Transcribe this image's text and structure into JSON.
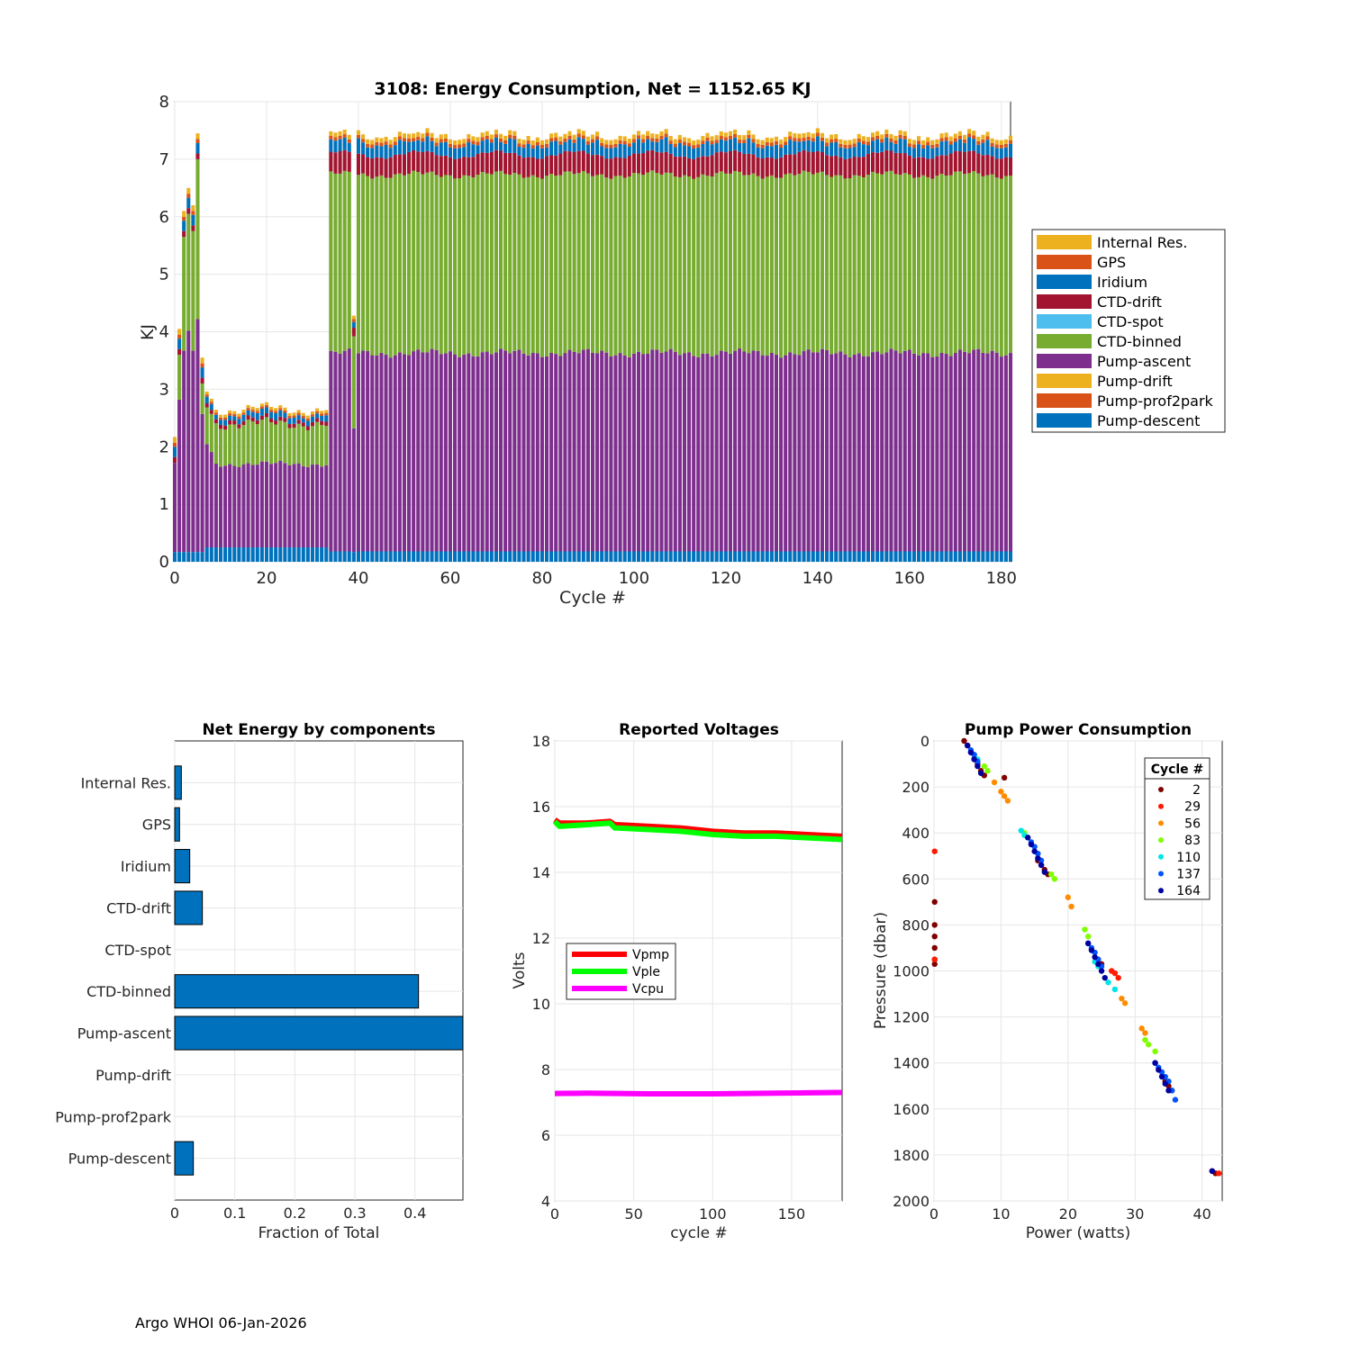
{
  "footer": "Argo WHOI 06-Jan-2026",
  "colors": {
    "internal": "#EDB120",
    "gps": "#D95319",
    "iridium": "#0072BD",
    "ctd_drift": "#A2142F",
    "ctd_spot": "#4DBEEE",
    "ctd_binned": "#77AC30",
    "pump_ascent": "#7E2F8E",
    "pump_drift": "#EDB120",
    "pump_prof2park": "#D95319",
    "pump_descent": "#0072BD",
    "vpmp": "#ff0000",
    "vple": "#00ff00",
    "vcpu": "#ff00ff"
  },
  "chart_data": [
    {
      "id": "energy",
      "type": "bar",
      "stacked": true,
      "title": "3108: Energy Consumption,  Net = 1152.65 KJ",
      "xlabel": "Cycle #",
      "ylabel": "KJ",
      "xlim": [
        0,
        182
      ],
      "ylim": [
        0,
        8
      ],
      "xticks": [
        0,
        20,
        40,
        60,
        80,
        100,
        120,
        140,
        160,
        180
      ],
      "yticks": [
        0,
        1,
        2,
        3,
        4,
        5,
        6,
        7,
        8
      ],
      "grid": true,
      "legend_position": "right",
      "legend": [
        "Internal Res.",
        "GPS",
        "Iridium",
        "CTD-drift",
        "CTD-spot",
        "CTD-binned",
        "Pump-ascent",
        "Pump-drift",
        "Pump-prof2park",
        "Pump-descent"
      ],
      "cycles": "0-182",
      "segment_values": {
        "early_cycles_0_6": {
          "totals": [
            1.9,
            4.05,
            6.1,
            6.5,
            6.2,
            7.45,
            3.55
          ],
          "pump_ascent": [
            1.55,
            2.65,
            3.5,
            3.85,
            3.5,
            4.05,
            2.4
          ]
        },
        "cycles_7_33": {
          "total_approx": 2.6,
          "pump_descent": 0.25,
          "pump_ascent": 1.45,
          "ctd_binned": 0.7,
          "ctd_drift": 0.07,
          "iridium": 0.1,
          "gps": 0.04,
          "internal": 0.05
        },
        "cycles_34_182": {
          "total_approx": 7.35,
          "pump_descent": 0.18,
          "pump_ascent": 3.45,
          "ctd_binned": 3.1,
          "ctd_drift": 0.35,
          "iridium": 0.15,
          "gps": 0.06,
          "internal": 0.08
        },
        "cycle_39": {
          "total": 4.3,
          "pump_ascent": 2.15
        }
      }
    },
    {
      "id": "components",
      "type": "bar",
      "orientation": "horizontal",
      "title": "Net Energy by components",
      "xlabel": "Fraction of Total",
      "xlim": [
        0,
        0.48
      ],
      "xticks": [
        0,
        0.1,
        0.2,
        0.3,
        0.4
      ],
      "categories": [
        "Internal Res.",
        "GPS",
        "Iridium",
        "CTD-drift",
        "CTD-spot",
        "CTD-binned",
        "Pump-ascent",
        "Pump-drift",
        "Pump-prof2park",
        "Pump-descent"
      ],
      "values": [
        0.011,
        0.008,
        0.025,
        0.046,
        0.0,
        0.406,
        0.48,
        0.0,
        0.0,
        0.031
      ],
      "grid": true
    },
    {
      "id": "voltages",
      "type": "line",
      "title": "Reported Voltages",
      "xlabel": "cycle #",
      "ylabel": "Volts",
      "xlim": [
        0,
        182
      ],
      "ylim": [
        4,
        18
      ],
      "xticks": [
        0,
        50,
        100,
        150
      ],
      "yticks": [
        4,
        6,
        8,
        10,
        12,
        14,
        16,
        18
      ],
      "grid": true,
      "legend_position": "center-left",
      "series": [
        {
          "name": "Vpmp",
          "x": [
            0,
            3,
            20,
            35,
            38,
            40,
            60,
            80,
            100,
            120,
            140,
            160,
            182
          ],
          "values": [
            15.6,
            15.5,
            15.5,
            15.55,
            15.45,
            15.45,
            15.4,
            15.35,
            15.25,
            15.2,
            15.2,
            15.15,
            15.1
          ]
        },
        {
          "name": "Vple",
          "x": [
            0,
            3,
            20,
            35,
            38,
            40,
            60,
            80,
            100,
            120,
            140,
            160,
            182
          ],
          "values": [
            15.55,
            15.4,
            15.45,
            15.5,
            15.35,
            15.35,
            15.3,
            15.25,
            15.15,
            15.1,
            15.1,
            15.05,
            15.0
          ]
        },
        {
          "name": "Vcpu",
          "x": [
            0,
            20,
            40,
            60,
            80,
            100,
            120,
            140,
            160,
            182
          ],
          "values": [
            7.27,
            7.28,
            7.27,
            7.26,
            7.26,
            7.26,
            7.27,
            7.28,
            7.29,
            7.3
          ]
        }
      ]
    },
    {
      "id": "pump",
      "type": "scatter",
      "title": "Pump Power Consumption",
      "xlabel": "Power (watts)",
      "ylabel": "Pressure (dbar)",
      "xlim": [
        0,
        43
      ],
      "ylim": [
        2000,
        0
      ],
      "xticks": [
        0,
        10,
        20,
        30,
        40
      ],
      "yticks": [
        0,
        200,
        400,
        600,
        800,
        1000,
        1200,
        1400,
        1600,
        1800,
        2000
      ],
      "grid": true,
      "legend_title": "Cycle #",
      "legend_position": "top-right",
      "series": [
        {
          "name": "2",
          "color": "#800000",
          "x": [
            4.5,
            5.0,
            5.5,
            6.0,
            6.5,
            7.0,
            7.5,
            10.5,
            0.1,
            0.1,
            0.1,
            0.1,
            0.1,
            0.1,
            15.5,
            16.0,
            16.5,
            17.0,
            24.5,
            25.0,
            34.5,
            35.0,
            35.5,
            41.5,
            42.0
          ],
          "values": [
            0,
            20,
            50,
            80,
            100,
            130,
            150,
            160,
            700,
            800,
            850,
            900,
            950,
            970,
            520,
            540,
            560,
            580,
            950,
            970,
            1480,
            1500,
            1520,
            1870,
            1880
          ]
        },
        {
          "name": "29",
          "color": "#ff1a00",
          "x": [
            0.1,
            0.1,
            26.5,
            27.0,
            27.5,
            42.5
          ],
          "values": [
            480,
            950,
            1000,
            1010,
            1030,
            1880
          ]
        },
        {
          "name": "56",
          "color": "#ff8c00",
          "x": [
            9.0,
            10.0,
            10.5,
            11.0,
            20.0,
            20.5,
            28.0,
            28.5,
            31.0,
            31.5
          ],
          "values": [
            180,
            220,
            240,
            260,
            680,
            720,
            1120,
            1140,
            1250,
            1270
          ]
        },
        {
          "name": "83",
          "color": "#7fff00",
          "x": [
            7.5,
            8.0,
            13.5,
            14.0,
            17.5,
            18.0,
            22.5,
            23.0,
            31.5,
            32.0,
            33.0
          ],
          "values": [
            110,
            130,
            400,
            420,
            580,
            600,
            820,
            850,
            1300,
            1320,
            1350
          ]
        },
        {
          "name": "110",
          "color": "#00e5e5",
          "x": [
            6.0,
            6.5,
            13.0,
            13.5,
            24.0,
            24.5,
            26.0,
            27.0
          ],
          "values": [
            60,
            80,
            390,
            410,
            960,
            980,
            1050,
            1080
          ]
        },
        {
          "name": "137",
          "color": "#0055ff",
          "x": [
            5.5,
            6.0,
            6.5,
            14.5,
            15.0,
            15.5,
            16.0,
            23.0,
            23.5,
            24.0,
            24.5,
            25.0,
            33.0,
            33.5,
            34.0,
            34.5,
            35.0,
            35.5,
            36.0
          ],
          "values": [
            40,
            60,
            90,
            440,
            460,
            490,
            520,
            880,
            900,
            920,
            950,
            980,
            1400,
            1420,
            1440,
            1460,
            1480,
            1520,
            1560
          ]
        },
        {
          "name": "164",
          "color": "#0000a0",
          "x": [
            5.0,
            5.5,
            6.0,
            6.5,
            7.0,
            14.0,
            14.5,
            15.0,
            15.5,
            16.0,
            16.5,
            23.0,
            23.5,
            24.0,
            24.5,
            25.0,
            25.5,
            33.0,
            33.5,
            34.0,
            34.5,
            35.0,
            41.5
          ],
          "values": [
            20,
            50,
            80,
            110,
            140,
            420,
            450,
            480,
            510,
            540,
            570,
            880,
            910,
            940,
            970,
            1000,
            1030,
            1400,
            1430,
            1460,
            1490,
            1520,
            1870
          ]
        }
      ]
    }
  ]
}
